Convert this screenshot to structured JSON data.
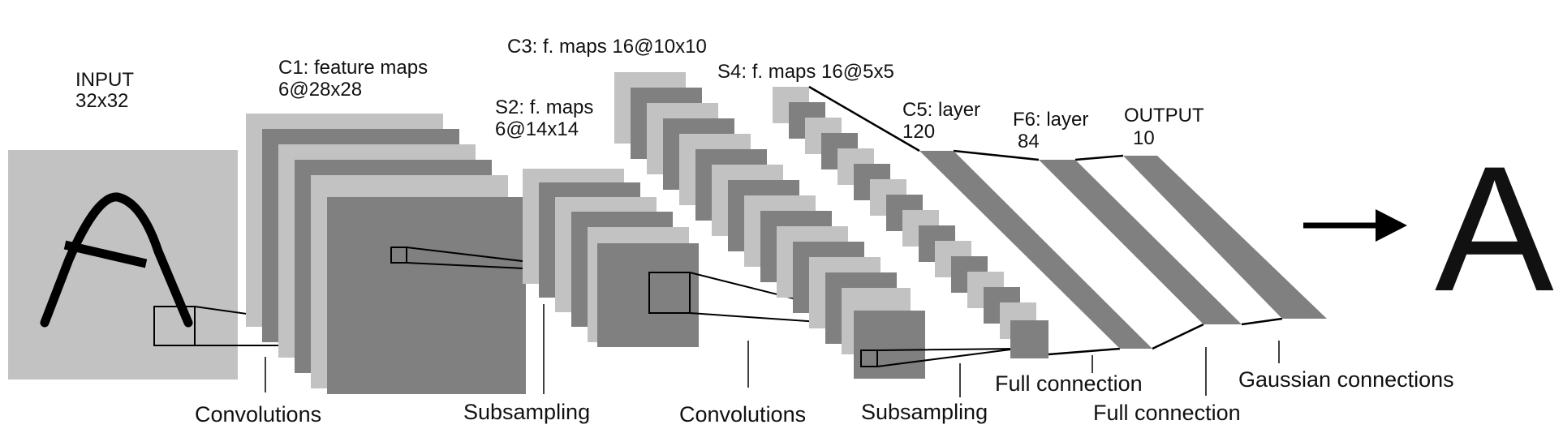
{
  "labels": {
    "input_l1": "INPUT",
    "input_l2": "32x32",
    "c1_l1": "C1: feature maps",
    "c1_l2": "6@28x28",
    "s2_l1": "S2: f. maps",
    "s2_l2": "6@14x14",
    "c3": "C3: f. maps 16@10x10",
    "s4": "S4: f. maps 16@5x5",
    "c5_l1": "C5: layer",
    "c5_l2": "120",
    "f6_l1": "F6: layer",
    "f6_l2": "84",
    "out_l1": "OUTPUT",
    "out_l2": "10"
  },
  "captions": {
    "conv1": "Convolutions",
    "sub1": "Subsampling",
    "conv2": "Convolutions",
    "sub2": "Subsampling",
    "full1": "Full connection",
    "full2": "Full connection",
    "gauss": "Gaussian connections"
  },
  "result": "A",
  "colors": {
    "light_gray": "#c2c2c2",
    "dark_gray": "#808080",
    "line": "#000000"
  }
}
